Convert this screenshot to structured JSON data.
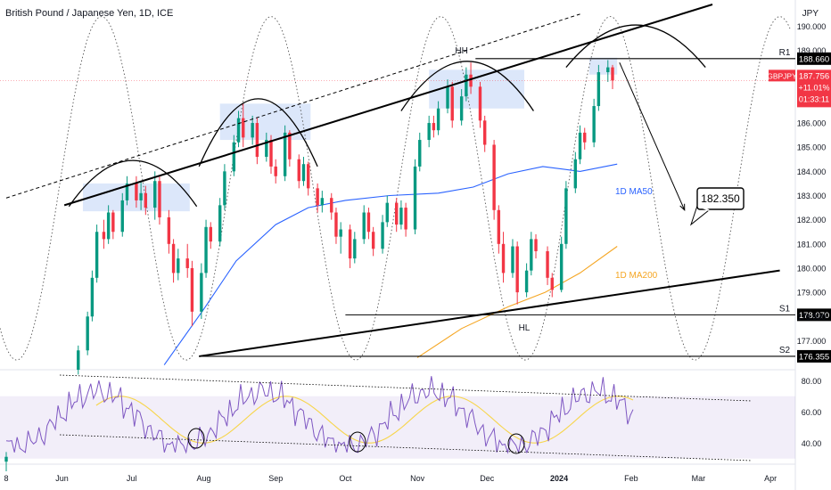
{
  "header": {
    "title": "British Pound / Japanese Yen, 1D, ICE",
    "currency": "JPY"
  },
  "chart_data": {
    "type": "candlestick",
    "symbol": "GBPJPY",
    "timeframe": "1D",
    "exchange": "ICE",
    "price_axis": {
      "ticks": [
        190,
        189,
        188,
        187,
        186,
        185,
        184,
        183,
        182,
        181,
        180,
        179,
        178,
        177
      ],
      "tick_labels": [
        "190.000",
        "189.000",
        "188.000",
        "187.000",
        "186.000",
        "185.000",
        "184.000",
        "183.000",
        "182.000",
        "181.000",
        "180.000",
        "179.000",
        "178.000",
        "177.000"
      ],
      "range": [
        175.8,
        190.9
      ]
    },
    "rsi_axis": {
      "ticks": [
        80,
        60,
        40
      ],
      "tick_labels": [
        "80.00",
        "60.00",
        "40.00"
      ],
      "range": [
        27,
        87
      ]
    },
    "time_axis": {
      "labels": [
        {
          "label": "8",
          "date": "2023-05-08"
        },
        {
          "label": "Jun",
          "date": "2023-06-01"
        },
        {
          "label": "Jul",
          "date": "2023-07-01"
        },
        {
          "label": "Aug",
          "date": "2023-08-01"
        },
        {
          "label": "Sep",
          "date": "2023-09-01"
        },
        {
          "label": "Oct",
          "date": "2023-10-01"
        },
        {
          "label": "Nov",
          "date": "2023-11-01"
        },
        {
          "label": "Dec",
          "date": "2023-12-01"
        },
        {
          "label": "2024",
          "date": "2024-01-01"
        },
        {
          "label": "Feb",
          "date": "2024-02-01"
        },
        {
          "label": "Mar",
          "date": "2024-03-01"
        },
        {
          "label": "Apr",
          "date": "2024-04-01"
        }
      ],
      "range": [
        "2023-05-08",
        "2024-04-09"
      ]
    },
    "last_price": {
      "symbol": "GBPJPY",
      "value": "187.756",
      "change": "+11.01%",
      "countdown": "01:33:11",
      "color": "#f23645"
    },
    "levels": [
      {
        "label": "R1",
        "value": 188.66,
        "display": "188.660",
        "start": "2023-11-26"
      },
      {
        "label": "S1",
        "value": 178.07,
        "display": "178.070",
        "start": "2023-10-01"
      },
      {
        "label": "S2",
        "value": 176.355,
        "display": "176.355",
        "start": "2023-07-30"
      }
    ],
    "annotations": {
      "hh": "HH",
      "hl": "HL",
      "target": "182.350",
      "ma50_label": "1D MA50",
      "ma200_label": "1D MA200"
    },
    "channel": {
      "upper": [
        {
          "date": "2023-06-02",
          "value": 182.6
        },
        {
          "date": "2024-03-07",
          "value": 190.9
        }
      ],
      "lower": [
        {
          "date": "2023-07-30",
          "value": 176.355
        },
        {
          "date": "2024-04-05",
          "value": 179.9
        }
      ],
      "dashed": [
        {
          "date": "2023-05-08",
          "value": 182.9
        },
        {
          "date": "2024-01-10",
          "value": 190.5
        }
      ]
    },
    "arcs": [
      {
        "start": "2023-06-04",
        "end": "2023-07-29",
        "base": 182.55,
        "peak": 184.45
      },
      {
        "start": "2023-07-30",
        "end": "2023-09-19",
        "base": 184.2,
        "peak": 187.0
      },
      {
        "start": "2023-10-25",
        "end": "2023-12-21",
        "base": 186.5,
        "peak": 188.55
      },
      {
        "start": "2024-01-04",
        "end": "2024-03-04",
        "base": 188.3,
        "peak": 190.05
      }
    ],
    "highlights": [
      {
        "start": "2023-06-10",
        "end": "2023-07-26",
        "low": 182.35,
        "high": 183.5
      },
      {
        "start": "2023-08-08",
        "end": "2023-09-16",
        "low": 185.3,
        "high": 186.8
      },
      {
        "start": "2023-11-06",
        "end": "2023-12-17",
        "low": 186.6,
        "high": 188.2
      },
      {
        "start": "2024-01-14",
        "end": "2024-01-26",
        "low": 188.0,
        "high": 188.7
      }
    ],
    "projection": [
      {
        "date": "2024-01-27",
        "value": 188.5
      },
      {
        "date": "2024-02-24",
        "value": 182.4
      }
    ],
    "ma50": [
      {
        "date": "2023-07-15",
        "value": 176.0
      },
      {
        "date": "2023-08-01",
        "value": 178.3
      },
      {
        "date": "2023-08-15",
        "value": 180.3
      },
      {
        "date": "2023-09-01",
        "value": 181.8
      },
      {
        "date": "2023-09-15",
        "value": 182.5
      },
      {
        "date": "2023-10-01",
        "value": 182.8
      },
      {
        "date": "2023-10-20",
        "value": 183.0
      },
      {
        "date": "2023-11-10",
        "value": 183.1
      },
      {
        "date": "2023-11-25",
        "value": 183.35
      },
      {
        "date": "2023-12-10",
        "value": 183.9
      },
      {
        "date": "2023-12-25",
        "value": 184.2
      },
      {
        "date": "2024-01-10",
        "value": 184.0
      },
      {
        "date": "2024-01-26",
        "value": 184.3
      }
    ],
    "ma200": [
      {
        "date": "2023-11-01",
        "value": 176.3
      },
      {
        "date": "2023-11-20",
        "value": 177.5
      },
      {
        "date": "2023-12-10",
        "value": 178.4
      },
      {
        "date": "2023-12-26",
        "value": 179.0
      },
      {
        "date": "2024-01-10",
        "value": 179.8
      },
      {
        "date": "2024-01-26",
        "value": 180.9
      }
    ],
    "candles": [
      {
        "date": "2023-05-08",
        "open": 172.0,
        "high": 172.4,
        "low": 171.6,
        "close": 172.2
      },
      {
        "date": "2023-06-08",
        "open": 175.8,
        "high": 176.8,
        "low": 175.6,
        "close": 176.6
      },
      {
        "date": "2023-06-12",
        "open": 176.6,
        "high": 178.2,
        "low": 176.4,
        "close": 178.0
      },
      {
        "date": "2023-06-14",
        "open": 178.0,
        "high": 179.9,
        "low": 177.8,
        "close": 179.6
      },
      {
        "date": "2023-06-16",
        "open": 179.6,
        "high": 181.8,
        "low": 179.4,
        "close": 181.5
      },
      {
        "date": "2023-06-19",
        "open": 181.5,
        "high": 182.0,
        "low": 180.8,
        "close": 181.2
      },
      {
        "date": "2023-06-21",
        "open": 181.2,
        "high": 182.6,
        "low": 181.0,
        "close": 182.3
      },
      {
        "date": "2023-06-23",
        "open": 182.3,
        "high": 182.4,
        "low": 181.2,
        "close": 181.5
      },
      {
        "date": "2023-06-27",
        "open": 181.5,
        "high": 183.1,
        "low": 181.3,
        "close": 182.8
      },
      {
        "date": "2023-06-29",
        "open": 182.8,
        "high": 183.8,
        "low": 182.6,
        "close": 183.5
      },
      {
        "date": "2023-07-03",
        "open": 183.5,
        "high": 183.8,
        "low": 182.5,
        "close": 182.8
      },
      {
        "date": "2023-07-05",
        "open": 182.8,
        "high": 183.6,
        "low": 182.4,
        "close": 183.1
      },
      {
        "date": "2023-07-07",
        "open": 183.1,
        "high": 183.4,
        "low": 182.2,
        "close": 182.5
      },
      {
        "date": "2023-07-11",
        "open": 182.5,
        "high": 184.0,
        "low": 182.0,
        "close": 183.6
      },
      {
        "date": "2023-07-13",
        "open": 183.6,
        "high": 183.8,
        "low": 181.8,
        "close": 182.1
      },
      {
        "date": "2023-07-17",
        "open": 182.1,
        "high": 182.4,
        "low": 180.6,
        "close": 181.0
      },
      {
        "date": "2023-07-19",
        "open": 181.0,
        "high": 181.2,
        "low": 179.4,
        "close": 179.8
      },
      {
        "date": "2023-07-21",
        "open": 179.8,
        "high": 180.8,
        "low": 179.5,
        "close": 180.4
      },
      {
        "date": "2023-07-25",
        "open": 180.4,
        "high": 181.0,
        "low": 179.6,
        "close": 180.0
      },
      {
        "date": "2023-07-27",
        "open": 180.0,
        "high": 180.3,
        "low": 177.6,
        "close": 178.2
      },
      {
        "date": "2023-07-31",
        "open": 178.2,
        "high": 180.2,
        "low": 177.9,
        "close": 179.8
      },
      {
        "date": "2023-08-02",
        "open": 179.8,
        "high": 182.0,
        "low": 179.6,
        "close": 181.7
      },
      {
        "date": "2023-08-04",
        "open": 181.7,
        "high": 181.9,
        "low": 180.8,
        "close": 181.1
      },
      {
        "date": "2023-08-08",
        "open": 181.1,
        "high": 182.9,
        "low": 180.9,
        "close": 182.6
      },
      {
        "date": "2023-08-10",
        "open": 182.6,
        "high": 184.3,
        "low": 182.4,
        "close": 184.0
      },
      {
        "date": "2023-08-14",
        "open": 184.0,
        "high": 185.5,
        "low": 183.8,
        "close": 185.2
      },
      {
        "date": "2023-08-16",
        "open": 185.2,
        "high": 186.5,
        "low": 185.0,
        "close": 186.2
      },
      {
        "date": "2023-08-18",
        "open": 186.2,
        "high": 186.8,
        "low": 185.0,
        "close": 185.4
      },
      {
        "date": "2023-08-22",
        "open": 185.4,
        "high": 186.3,
        "low": 185.1,
        "close": 186.0
      },
      {
        "date": "2023-08-24",
        "open": 186.0,
        "high": 186.2,
        "low": 184.3,
        "close": 184.6
      },
      {
        "date": "2023-08-28",
        "open": 184.6,
        "high": 185.6,
        "low": 184.4,
        "close": 185.3
      },
      {
        "date": "2023-08-30",
        "open": 185.3,
        "high": 185.5,
        "low": 183.9,
        "close": 184.2
      },
      {
        "date": "2023-09-01",
        "open": 184.2,
        "high": 184.5,
        "low": 183.5,
        "close": 183.8
      },
      {
        "date": "2023-09-05",
        "open": 183.8,
        "high": 185.9,
        "low": 183.6,
        "close": 185.6
      },
      {
        "date": "2023-09-07",
        "open": 185.6,
        "high": 185.7,
        "low": 184.2,
        "close": 184.5
      },
      {
        "date": "2023-09-11",
        "open": 184.5,
        "high": 184.7,
        "low": 183.3,
        "close": 183.6
      },
      {
        "date": "2023-09-13",
        "open": 183.6,
        "high": 184.6,
        "low": 183.4,
        "close": 184.3
      },
      {
        "date": "2023-09-15",
        "open": 184.3,
        "high": 184.4,
        "low": 183.0,
        "close": 183.3
      },
      {
        "date": "2023-09-19",
        "open": 183.3,
        "high": 183.5,
        "low": 182.3,
        "close": 182.6
      },
      {
        "date": "2023-09-21",
        "open": 182.6,
        "high": 183.2,
        "low": 182.3,
        "close": 182.9
      },
      {
        "date": "2023-09-25",
        "open": 182.9,
        "high": 183.1,
        "low": 182.0,
        "close": 182.3
      },
      {
        "date": "2023-09-27",
        "open": 182.3,
        "high": 182.5,
        "low": 181.0,
        "close": 181.3
      },
      {
        "date": "2023-09-29",
        "open": 181.3,
        "high": 181.9,
        "low": 180.6,
        "close": 181.6
      },
      {
        "date": "2023-10-03",
        "open": 181.6,
        "high": 181.8,
        "low": 180.0,
        "close": 180.4
      },
      {
        "date": "2023-10-05",
        "open": 180.4,
        "high": 181.5,
        "low": 180.2,
        "close": 181.2
      },
      {
        "date": "2023-10-09",
        "open": 181.2,
        "high": 182.6,
        "low": 181.0,
        "close": 182.3
      },
      {
        "date": "2023-10-11",
        "open": 182.3,
        "high": 182.5,
        "low": 181.2,
        "close": 181.5
      },
      {
        "date": "2023-10-13",
        "open": 181.5,
        "high": 181.7,
        "low": 180.5,
        "close": 180.8
      },
      {
        "date": "2023-10-17",
        "open": 180.8,
        "high": 182.2,
        "low": 180.6,
        "close": 181.9
      },
      {
        "date": "2023-10-19",
        "open": 181.9,
        "high": 183.0,
        "low": 181.7,
        "close": 182.7
      },
      {
        "date": "2023-10-23",
        "open": 182.7,
        "high": 182.9,
        "low": 181.5,
        "close": 181.8
      },
      {
        "date": "2023-10-25",
        "open": 181.8,
        "high": 182.8,
        "low": 181.6,
        "close": 182.5
      },
      {
        "date": "2023-10-27",
        "open": 182.5,
        "high": 182.7,
        "low": 181.3,
        "close": 181.6
      },
      {
        "date": "2023-10-31",
        "open": 181.6,
        "high": 184.5,
        "low": 181.4,
        "close": 184.2
      },
      {
        "date": "2023-11-02",
        "open": 184.2,
        "high": 185.6,
        "low": 184.0,
        "close": 185.3
      },
      {
        "date": "2023-11-06",
        "open": 185.3,
        "high": 186.3,
        "low": 185.0,
        "close": 186.0
      },
      {
        "date": "2023-11-08",
        "open": 186.0,
        "high": 186.3,
        "low": 185.4,
        "close": 185.7
      },
      {
        "date": "2023-11-10",
        "open": 185.7,
        "high": 186.9,
        "low": 185.5,
        "close": 186.6
      },
      {
        "date": "2023-11-14",
        "open": 186.6,
        "high": 187.8,
        "low": 186.4,
        "close": 187.5
      },
      {
        "date": "2023-11-16",
        "open": 187.5,
        "high": 187.7,
        "low": 185.8,
        "close": 186.1
      },
      {
        "date": "2023-11-20",
        "open": 186.1,
        "high": 187.4,
        "low": 185.9,
        "close": 187.1
      },
      {
        "date": "2023-11-22",
        "open": 187.1,
        "high": 188.3,
        "low": 186.9,
        "close": 188.0
      },
      {
        "date": "2023-11-24",
        "open": 188.0,
        "high": 188.5,
        "low": 187.2,
        "close": 187.5
      },
      {
        "date": "2023-11-28",
        "open": 187.5,
        "high": 187.7,
        "low": 185.8,
        "close": 186.1
      },
      {
        "date": "2023-11-30",
        "open": 186.1,
        "high": 186.3,
        "low": 184.8,
        "close": 185.1
      },
      {
        "date": "2023-12-04",
        "open": 185.1,
        "high": 185.3,
        "low": 182.0,
        "close": 182.4
      },
      {
        "date": "2023-12-06",
        "open": 182.4,
        "high": 182.6,
        "low": 180.6,
        "close": 181.0
      },
      {
        "date": "2023-12-08",
        "open": 181.0,
        "high": 181.5,
        "low": 179.4,
        "close": 179.8
      },
      {
        "date": "2023-12-12",
        "open": 179.8,
        "high": 181.2,
        "low": 179.6,
        "close": 180.9
      },
      {
        "date": "2023-12-14",
        "open": 180.9,
        "high": 181.1,
        "low": 178.5,
        "close": 179.0
      },
      {
        "date": "2023-12-18",
        "open": 179.0,
        "high": 180.2,
        "low": 178.8,
        "close": 179.9
      },
      {
        "date": "2023-12-20",
        "open": 179.9,
        "high": 181.5,
        "low": 179.7,
        "close": 181.2
      },
      {
        "date": "2023-12-22",
        "open": 181.2,
        "high": 181.4,
        "low": 180.4,
        "close": 180.7
      },
      {
        "date": "2023-12-27",
        "open": 180.7,
        "high": 180.9,
        "low": 179.3,
        "close": 179.6
      },
      {
        "date": "2023-12-29",
        "open": 179.6,
        "high": 179.8,
        "low": 178.8,
        "close": 179.1
      },
      {
        "date": "2024-01-02",
        "open": 179.1,
        "high": 181.3,
        "low": 179.0,
        "close": 181.0
      },
      {
        "date": "2024-01-04",
        "open": 181.0,
        "high": 183.6,
        "low": 180.8,
        "close": 183.3
      },
      {
        "date": "2024-01-08",
        "open": 183.3,
        "high": 184.8,
        "low": 183.1,
        "close": 184.5
      },
      {
        "date": "2024-01-10",
        "open": 184.5,
        "high": 185.9,
        "low": 184.3,
        "close": 185.6
      },
      {
        "date": "2024-01-12",
        "open": 185.6,
        "high": 185.8,
        "low": 184.9,
        "close": 185.2
      },
      {
        "date": "2024-01-16",
        "open": 185.2,
        "high": 187.0,
        "low": 185.0,
        "close": 186.7
      },
      {
        "date": "2024-01-18",
        "open": 186.7,
        "high": 188.4,
        "low": 186.5,
        "close": 188.1
      },
      {
        "date": "2024-01-22",
        "open": 188.1,
        "high": 188.6,
        "low": 187.7,
        "close": 188.3
      },
      {
        "date": "2024-01-24",
        "open": 188.3,
        "high": 188.4,
        "low": 187.4,
        "close": 187.756
      }
    ]
  }
}
